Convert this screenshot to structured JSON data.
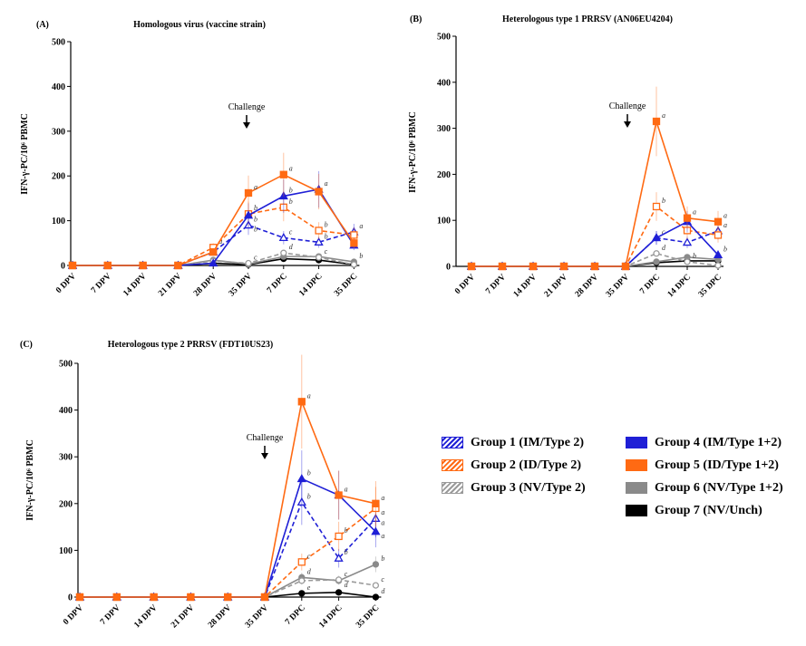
{
  "legend": [
    {
      "name": "Group 1 (IM/Type 2)",
      "color": "#1f1fd6",
      "style": "dashed",
      "marker": "open-triangle",
      "swatch": "hatched"
    },
    {
      "name": "Group 2 (ID/Type 2)",
      "color": "#ff6a13",
      "style": "dashed",
      "marker": "open-square",
      "swatch": "hatched"
    },
    {
      "name": "Group 3 (NV/Type 2)",
      "color": "#9a9a9a",
      "style": "dashed",
      "marker": "open-circle",
      "swatch": "hatched"
    },
    {
      "name": "Group 4 (IM/Type 1+2)",
      "color": "#1f1fd6",
      "style": "solid",
      "marker": "filled-triangle",
      "swatch": "solid"
    },
    {
      "name": "Group 5 (ID/Type 1+2)",
      "color": "#ff6a13",
      "style": "solid",
      "marker": "filled-square",
      "swatch": "solid"
    },
    {
      "name": "Group 6 (NV/Type 1+2)",
      "color": "#8a8a8a",
      "style": "solid",
      "marker": "filled-circle",
      "swatch": "solid"
    },
    {
      "name": "Group 7 (NV/Unch)",
      "color": "#000000",
      "style": "solid",
      "marker": "filled-circle",
      "swatch": "solid"
    }
  ],
  "chart_data": [
    {
      "type": "line",
      "panel_label": "(A)",
      "title": "Homologous virus (vaccine strain)",
      "ylabel": "IFN-γ-PC/10⁶ PBMC",
      "annotation": "Challenge",
      "categories": [
        "0 DPV",
        "7 DPV",
        "14 DPV",
        "21 DPV",
        "28 DPV",
        "35 DPV",
        "7 DPC",
        "14 DPC",
        "35 DPC"
      ],
      "ylim": [
        0,
        500
      ],
      "yticks": [
        0,
        100,
        200,
        300,
        400,
        500
      ],
      "series": [
        {
          "name": "Group 1 (IM/Type 2)",
          "values": [
            0,
            0,
            0,
            0,
            30,
            90,
            62,
            52,
            75
          ],
          "letters": [
            null,
            null,
            null,
            null,
            null,
            "b",
            "c",
            "b",
            "a"
          ]
        },
        {
          "name": "Group 2 (ID/Type 2)",
          "values": [
            0,
            0,
            0,
            0,
            40,
            115,
            130,
            78,
            68
          ],
          "letters": [
            null,
            null,
            null,
            null,
            "a",
            "b",
            "b",
            "b",
            null
          ]
        },
        {
          "name": "Group 3 (NV/Type 2)",
          "values": [
            0,
            0,
            0,
            0,
            10,
            5,
            28,
            18,
            2
          ],
          "letters": [
            null,
            null,
            null,
            null,
            null,
            "c",
            "d",
            "c",
            null
          ]
        },
        {
          "name": "Group 4 (IM/Type 1+2)",
          "values": [
            0,
            0,
            0,
            0,
            5,
            112,
            155,
            170,
            45
          ],
          "letters": [
            null,
            null,
            null,
            null,
            null,
            "b",
            "b",
            "a",
            null
          ]
        },
        {
          "name": "Group 5 (ID/Type 1+2)",
          "values": [
            0,
            0,
            0,
            0,
            30,
            162,
            203,
            165,
            50
          ],
          "letters": [
            null,
            null,
            null,
            null,
            null,
            "a",
            "a",
            null,
            null
          ]
        },
        {
          "name": "Group 6 (NV/Type 1+2)",
          "values": [
            0,
            0,
            0,
            0,
            12,
            3,
            20,
            20,
            8
          ],
          "letters": [
            null,
            null,
            null,
            null,
            null,
            null,
            null,
            null,
            "b"
          ]
        },
        {
          "name": "Group 7 (NV/Unch)",
          "values": [
            0,
            0,
            0,
            0,
            5,
            2,
            15,
            12,
            2
          ],
          "letters": [
            null,
            null,
            null,
            null,
            null,
            null,
            null,
            null,
            null
          ]
        }
      ]
    },
    {
      "type": "line",
      "panel_label": "(B)",
      "title": "Heterologous type 1 PRRSV (AN06EU4204)",
      "ylabel": "IFN-γ-PC/10⁶ PBMC",
      "annotation": "Challenge",
      "categories": [
        "0 DPV",
        "7 DPV",
        "14 DPV",
        "21 DPV",
        "28 DPV",
        "35 DPV",
        "7 DPC",
        "14 DPC",
        "35 DPC"
      ],
      "ylim": [
        0,
        500
      ],
      "yticks": [
        0,
        100,
        200,
        300,
        400,
        500
      ],
      "series": [
        {
          "name": "Group 1 (IM/Type 2)",
          "values": [
            0,
            0,
            0,
            0,
            0,
            0,
            62,
            52,
            77
          ],
          "letters": [
            null,
            null,
            null,
            null,
            null,
            null,
            "c",
            null,
            "a"
          ]
        },
        {
          "name": "Group 2 (ID/Type 2)",
          "values": [
            0,
            0,
            0,
            0,
            0,
            0,
            130,
            78,
            68
          ],
          "letters": [
            null,
            null,
            null,
            null,
            null,
            null,
            "b",
            null,
            null
          ]
        },
        {
          "name": "Group 3 (NV/Type 2)",
          "values": [
            0,
            0,
            0,
            0,
            0,
            0,
            28,
            10,
            2
          ],
          "letters": [
            null,
            null,
            null,
            null,
            null,
            null,
            "d",
            "b",
            null
          ]
        },
        {
          "name": "Group 4 (IM/Type 1+2)",
          "values": [
            0,
            0,
            0,
            0,
            0,
            0,
            62,
            97,
            25
          ],
          "letters": [
            null,
            null,
            null,
            null,
            null,
            null,
            null,
            null,
            "b"
          ]
        },
        {
          "name": "Group 5 (ID/Type 1+2)",
          "values": [
            0,
            0,
            0,
            0,
            0,
            0,
            315,
            105,
            97
          ],
          "letters": [
            null,
            null,
            null,
            null,
            null,
            null,
            "a",
            "a",
            "a"
          ]
        },
        {
          "name": "Group 6 (NV/Type 1+2)",
          "values": [
            0,
            0,
            0,
            0,
            0,
            0,
            10,
            20,
            15
          ],
          "letters": [
            null,
            null,
            null,
            null,
            null,
            null,
            null,
            null,
            null
          ]
        },
        {
          "name": "Group 7 (NV/Unch)",
          "values": [
            0,
            0,
            0,
            0,
            0,
            0,
            8,
            12,
            12
          ],
          "letters": [
            null,
            null,
            null,
            null,
            null,
            null,
            null,
            null,
            null
          ]
        }
      ]
    },
    {
      "type": "line",
      "panel_label": "(C)",
      "title": "Heterologous type 2 PRRSV (FDT10US23)",
      "ylabel": "IFN-γ-PC/10⁶ PBMC",
      "annotation": "Challenge",
      "categories": [
        "0 DPV",
        "7 DPV",
        "14 DPV",
        "21 DPV",
        "28 DPV",
        "35 DPV",
        "7 DPC",
        "14 DPC",
        "35 DPC"
      ],
      "ylim": [
        0,
        500
      ],
      "yticks": [
        0,
        100,
        200,
        300,
        400,
        500
      ],
      "series": [
        {
          "name": "Group 1 (IM/Type 2)",
          "values": [
            0,
            0,
            0,
            0,
            0,
            0,
            203,
            83,
            168
          ],
          "letters": [
            null,
            null,
            null,
            null,
            null,
            null,
            "b",
            "b",
            "a"
          ]
        },
        {
          "name": "Group 2 (ID/Type 2)",
          "values": [
            0,
            0,
            0,
            0,
            0,
            0,
            75,
            130,
            190
          ],
          "letters": [
            null,
            null,
            null,
            null,
            null,
            null,
            "c",
            "b",
            "a"
          ]
        },
        {
          "name": "Group 3 (NV/Type 2)",
          "values": [
            0,
            0,
            0,
            0,
            0,
            0,
            35,
            37,
            25
          ],
          "letters": [
            null,
            null,
            null,
            null,
            null,
            null,
            null,
            "c",
            "c"
          ]
        },
        {
          "name": "Group 4 (IM/Type 1+2)",
          "values": [
            0,
            0,
            0,
            0,
            0,
            0,
            253,
            218,
            140
          ],
          "letters": [
            null,
            null,
            null,
            null,
            null,
            null,
            "b",
            null,
            "a"
          ]
        },
        {
          "name": "Group 5 (ID/Type 1+2)",
          "values": [
            0,
            0,
            0,
            0,
            0,
            0,
            418,
            218,
            200
          ],
          "letters": [
            null,
            null,
            null,
            null,
            null,
            null,
            "a",
            "a",
            "a"
          ]
        },
        {
          "name": "Group 6 (NV/Type 1+2)",
          "values": [
            0,
            0,
            0,
            0,
            0,
            0,
            42,
            35,
            70
          ],
          "letters": [
            null,
            null,
            null,
            null,
            null,
            null,
            "d",
            "d",
            "b"
          ]
        },
        {
          "name": "Group 7 (NV/Unch)",
          "values": [
            0,
            0,
            0,
            0,
            0,
            0,
            8,
            10,
            0
          ],
          "letters": [
            null,
            null,
            null,
            null,
            null,
            null,
            "e",
            null,
            "d"
          ]
        }
      ]
    }
  ]
}
